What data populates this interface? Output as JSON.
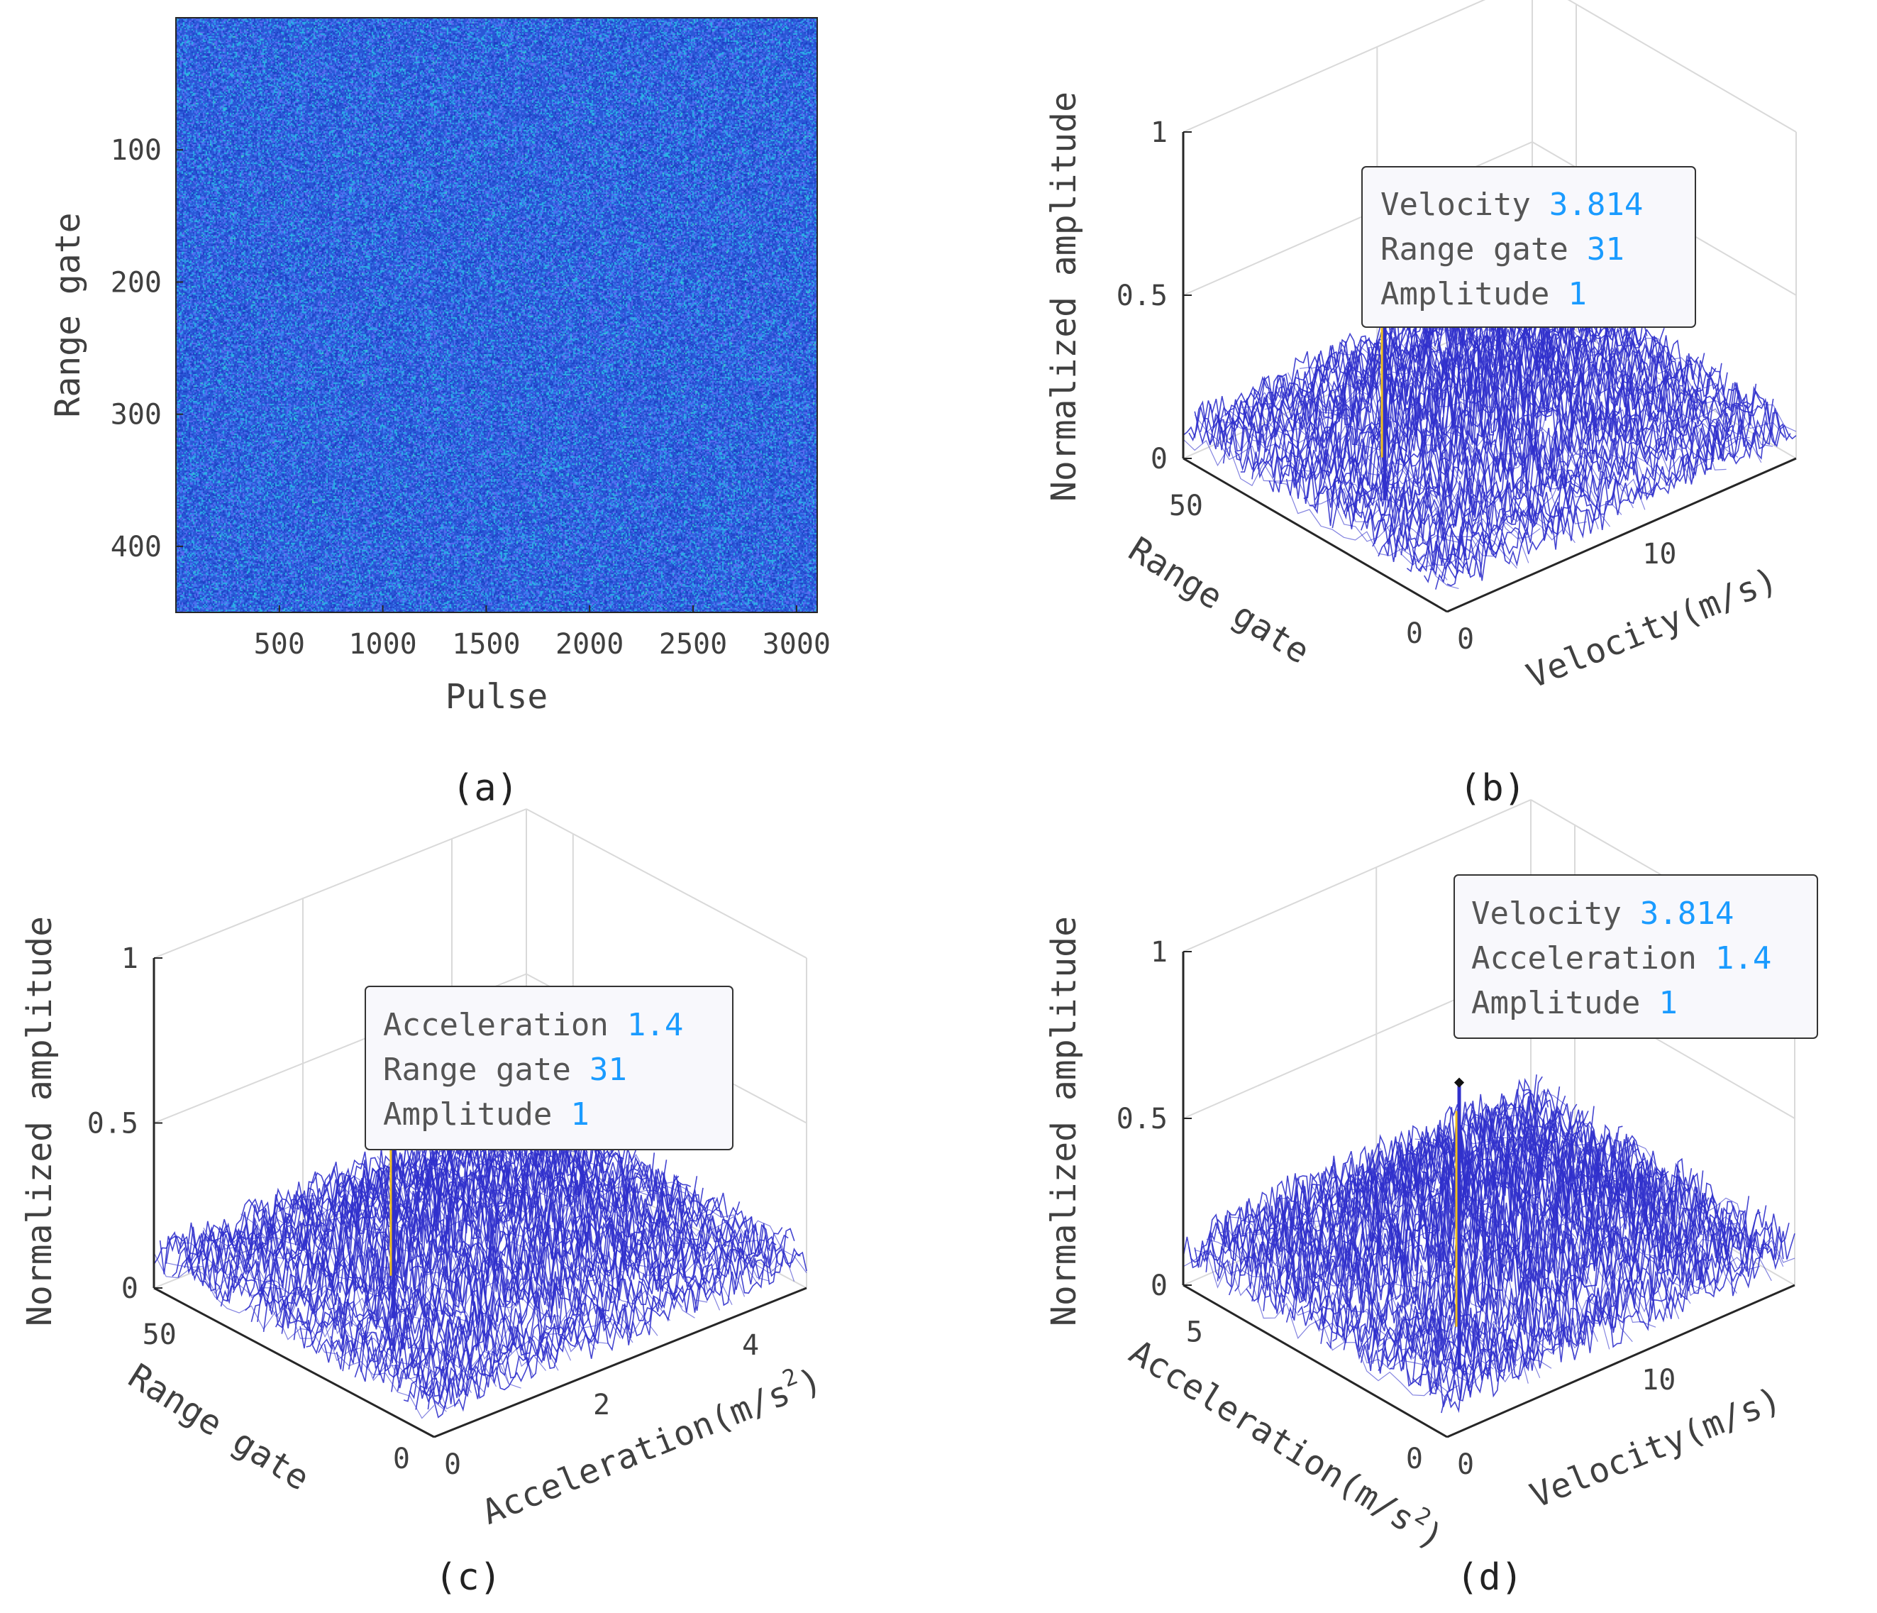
{
  "colors": {
    "heatmap_base": "#2a57d6",
    "heatmap_speckle": [
      "#1d3fc4",
      "#3b7cf0",
      "#2bb3e6",
      "#5a6cf2",
      "#3fd0c8"
    ],
    "mesh": "#3030cc",
    "peak_marker": "#f0c020",
    "tip_value": "#1a9bff"
  },
  "chart_data": [
    {
      "id": "a",
      "type": "heatmap",
      "caption": "(a)",
      "xlabel": "Pulse",
      "ylabel": "Range gate",
      "xlim": [
        0,
        3100
      ],
      "ylim": [
        0,
        450
      ],
      "x_ticks": [
        "500",
        "1000",
        "1500",
        "2000",
        "2500",
        "3000"
      ],
      "y_ticks": [
        "100",
        "200",
        "300",
        "400"
      ],
      "note": "noise-like returns, no visible target"
    },
    {
      "id": "b",
      "type": "surface",
      "caption": "(b)",
      "zlabel": "Normalized amplitude",
      "left_axis_label": "Range gate",
      "right_axis_label": "Velocity(m/s)",
      "z_ticks": [
        "0",
        "0.5",
        "1"
      ],
      "left_ticks": [
        "0",
        "50"
      ],
      "right_ticks": [
        "0",
        "10"
      ],
      "left_range": [
        0,
        60
      ],
      "right_range": [
        0,
        18
      ],
      "noise_level": 0.3,
      "peak": {
        "left": 31,
        "right": 3.814,
        "amplitude": 1
      },
      "datatip": [
        {
          "key": "Velocity",
          "value": "3.814"
        },
        {
          "key": "Range gate",
          "value": "31"
        },
        {
          "key": "Amplitude",
          "value": "1"
        }
      ]
    },
    {
      "id": "c",
      "type": "surface",
      "caption": "(c)",
      "zlabel": "Normalized amplitude",
      "left_axis_label": "Range gate",
      "right_axis_label": "Acceleration(m/s",
      "right_axis_label_sup": "2",
      "right_axis_label_end": ")",
      "z_ticks": [
        "0",
        "0.5",
        "1"
      ],
      "left_ticks": [
        "0",
        "50"
      ],
      "right_ticks": [
        "0",
        "2",
        "4"
      ],
      "left_range": [
        0,
        60
      ],
      "right_range": [
        0,
        5
      ],
      "noise_level": 0.3,
      "peak": {
        "left": 31,
        "right": 1.4,
        "amplitude": 1
      },
      "datatip": [
        {
          "key": "Acceleration",
          "value": "1.4"
        },
        {
          "key": "Range gate",
          "value": "31"
        },
        {
          "key": "Amplitude",
          "value": "1"
        }
      ]
    },
    {
      "id": "d",
      "type": "surface",
      "caption": "(d)",
      "zlabel": "Normalized amplitude",
      "left_axis_label": "Acceleration(m/s",
      "left_axis_label_sup": "2",
      "left_axis_label_end": ")",
      "right_axis_label": "Velocity(m/s)",
      "z_ticks": [
        "0",
        "0.5",
        "1"
      ],
      "left_ticks": [
        "0",
        "5"
      ],
      "right_ticks": [
        "0",
        "10"
      ],
      "left_range": [
        0,
        6
      ],
      "right_range": [
        0,
        18
      ],
      "noise_level": 0.35,
      "peak": {
        "left": 1.4,
        "right": 3.814,
        "amplitude": 1
      },
      "datatip": [
        {
          "key": "Velocity",
          "value": "3.814"
        },
        {
          "key": "Acceleration",
          "value": "1.4"
        },
        {
          "key": "Amplitude",
          "value": "1"
        }
      ]
    }
  ]
}
